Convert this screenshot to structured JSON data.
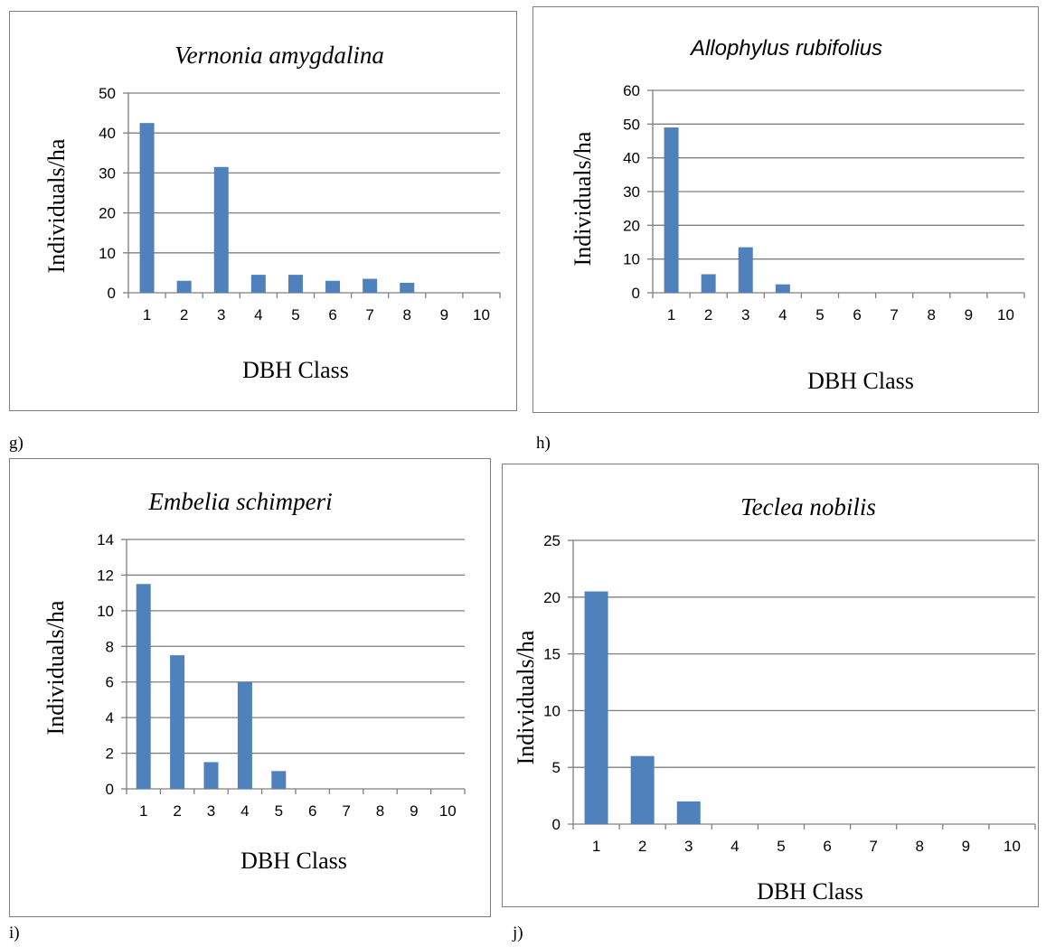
{
  "chart_data": [
    {
      "type": "bar",
      "panel_label": "g)",
      "title": "Vernonia amygdalina",
      "xlabel": "DBH Class",
      "ylabel": "Individuals/ha",
      "categories": [
        "1",
        "2",
        "3",
        "4",
        "5",
        "6",
        "7",
        "8",
        "9",
        "10"
      ],
      "values": [
        42.5,
        3,
        31.5,
        4.5,
        4.5,
        3,
        3.5,
        2.5,
        0,
        0
      ],
      "ylim": [
        0,
        50
      ],
      "yticks": [
        0,
        10,
        20,
        30,
        40,
        50
      ],
      "ytick_labels": [
        "0",
        "10",
        "20",
        "30",
        "40",
        "50"
      ],
      "grid": true,
      "bar_color": "#4f81bd"
    },
    {
      "type": "bar",
      "panel_label": "h)",
      "title": "Allophylus rubifolius",
      "xlabel": "DBH Class",
      "ylabel": "Individuals/ha",
      "categories": [
        "1",
        "2",
        "3",
        "4",
        "5",
        "6",
        "7",
        "8",
        "9",
        "10"
      ],
      "values": [
        49,
        5.5,
        13.5,
        2.5,
        0,
        0,
        0,
        0,
        0,
        0
      ],
      "ylim": [
        0,
        60
      ],
      "yticks": [
        0,
        10,
        20,
        30,
        40,
        50,
        60
      ],
      "ytick_labels": [
        "0",
        "10",
        "20",
        "30",
        "40",
        "50",
        "60"
      ],
      "grid": true,
      "bar_color": "#4f81bd"
    },
    {
      "type": "bar",
      "panel_label": "i)",
      "title": "Embelia schimperi",
      "xlabel": "DBH Class",
      "ylabel": "Individuals/ha",
      "categories": [
        "1",
        "2",
        "3",
        "4",
        "5",
        "6",
        "7",
        "8",
        "9",
        "10"
      ],
      "values": [
        11.5,
        7.5,
        1.5,
        6,
        1,
        0,
        0,
        0,
        0,
        0
      ],
      "ylim": [
        0,
        14
      ],
      "yticks": [
        0,
        2,
        4,
        6,
        8,
        10,
        12,
        14
      ],
      "ytick_labels": [
        "0",
        "2",
        "4",
        "6",
        "8",
        "10",
        "12",
        "14"
      ],
      "grid": true,
      "bar_color": "#4f81bd"
    },
    {
      "type": "bar",
      "panel_label": "j)",
      "title": "Teclea nobilis",
      "xlabel": "DBH Class",
      "ylabel": "Individuals/ha",
      "categories": [
        "1",
        "2",
        "3",
        "4",
        "5",
        "6",
        "7",
        "8",
        "9",
        "10"
      ],
      "values": [
        20.5,
        6,
        2,
        0,
        0,
        0,
        0,
        0,
        0,
        0
      ],
      "ylim": [
        0,
        25
      ],
      "yticks": [
        0,
        5,
        10,
        15,
        20,
        25
      ],
      "ytick_labels": [
        "0",
        "5",
        "10",
        "15",
        "20",
        "25"
      ],
      "grid": true,
      "bar_color": "#4f81bd"
    }
  ]
}
